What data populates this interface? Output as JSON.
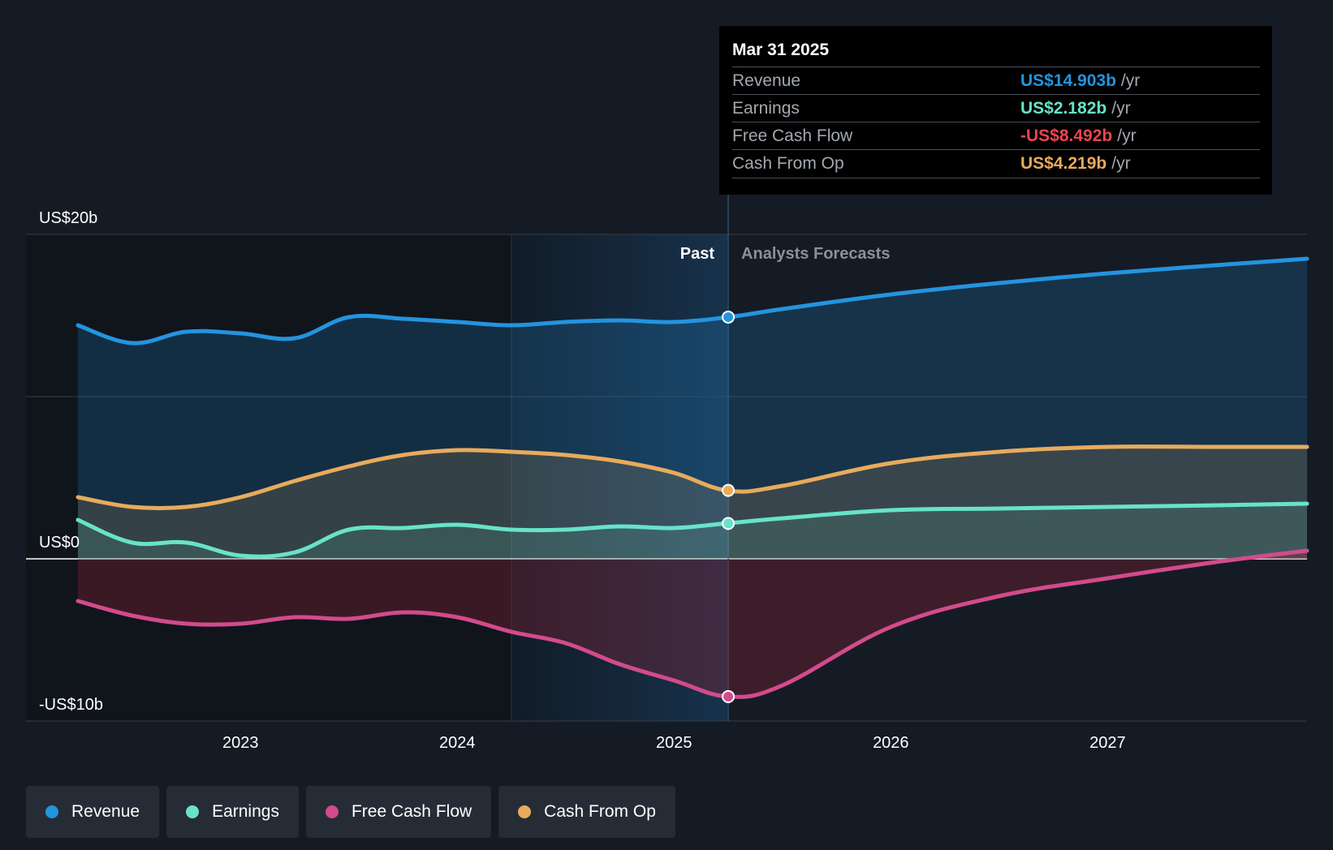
{
  "chart_data": {
    "type": "area",
    "x_domain": [
      2022.25,
      2027.92
    ],
    "y_domain": [
      -10,
      20
    ],
    "x_ticks": [
      {
        "value": 2023,
        "label": "2023"
      },
      {
        "value": 2024,
        "label": "2024"
      },
      {
        "value": 2025,
        "label": "2025"
      },
      {
        "value": 2026,
        "label": "2026"
      },
      {
        "value": 2027,
        "label": "2027"
      }
    ],
    "y_ticks": [
      {
        "value": 20,
        "label": "US$20b"
      },
      {
        "value": 0,
        "label": "US$0"
      },
      {
        "value": -10,
        "label": "-US$10b"
      }
    ],
    "gridlines": [
      20,
      10,
      0,
      -10
    ],
    "past_start": 2024.25,
    "divider": 2025.25,
    "past_label": "Past",
    "forecast_label": "Analysts Forecasts",
    "series": [
      {
        "name": "Revenue",
        "key": "revenue",
        "color": "#2394df",
        "points": [
          [
            2022.25,
            14.4
          ],
          [
            2022.5,
            13.3
          ],
          [
            2022.75,
            14.0
          ],
          [
            2023.0,
            13.9
          ],
          [
            2023.25,
            13.6
          ],
          [
            2023.5,
            14.9
          ],
          [
            2023.75,
            14.8
          ],
          [
            2024.0,
            14.6
          ],
          [
            2024.25,
            14.4
          ],
          [
            2024.5,
            14.6
          ],
          [
            2024.75,
            14.7
          ],
          [
            2025.0,
            14.6
          ],
          [
            2025.25,
            14.9
          ],
          [
            2025.5,
            15.4
          ],
          [
            2026.0,
            16.3
          ],
          [
            2026.5,
            17.0
          ],
          [
            2027.0,
            17.6
          ],
          [
            2027.5,
            18.1
          ],
          [
            2027.92,
            18.5
          ]
        ],
        "marker": 14.903
      },
      {
        "name": "Cash From Op",
        "key": "cfo",
        "color": "#e8ab5c",
        "points": [
          [
            2022.25,
            3.8
          ],
          [
            2022.5,
            3.2
          ],
          [
            2022.75,
            3.2
          ],
          [
            2023.0,
            3.8
          ],
          [
            2023.25,
            4.8
          ],
          [
            2023.5,
            5.7
          ],
          [
            2023.75,
            6.4
          ],
          [
            2024.0,
            6.7
          ],
          [
            2024.25,
            6.6
          ],
          [
            2024.5,
            6.4
          ],
          [
            2024.75,
            6.0
          ],
          [
            2025.0,
            5.3
          ],
          [
            2025.25,
            4.2
          ],
          [
            2025.5,
            4.5
          ],
          [
            2026.0,
            5.9
          ],
          [
            2026.5,
            6.6
          ],
          [
            2027.0,
            6.9
          ],
          [
            2027.5,
            6.9
          ],
          [
            2027.92,
            6.9
          ]
        ],
        "marker": 4.219
      },
      {
        "name": "Earnings",
        "key": "earnings",
        "color": "#67e3c9",
        "points": [
          [
            2022.25,
            2.4
          ],
          [
            2022.5,
            1.0
          ],
          [
            2022.75,
            1.0
          ],
          [
            2023.0,
            0.2
          ],
          [
            2023.25,
            0.4
          ],
          [
            2023.5,
            1.8
          ],
          [
            2023.75,
            1.9
          ],
          [
            2024.0,
            2.1
          ],
          [
            2024.25,
            1.8
          ],
          [
            2024.5,
            1.8
          ],
          [
            2024.75,
            2.0
          ],
          [
            2025.0,
            1.9
          ],
          [
            2025.25,
            2.2
          ],
          [
            2025.5,
            2.5
          ],
          [
            2026.0,
            3.0
          ],
          [
            2026.5,
            3.1
          ],
          [
            2027.0,
            3.2
          ],
          [
            2027.5,
            3.3
          ],
          [
            2027.92,
            3.4
          ]
        ],
        "marker": 2.182
      },
      {
        "name": "Free Cash Flow",
        "key": "fcf",
        "color": "#d24b8c",
        "points": [
          [
            2022.25,
            -2.6
          ],
          [
            2022.5,
            -3.5
          ],
          [
            2022.75,
            -4.0
          ],
          [
            2023.0,
            -4.0
          ],
          [
            2023.25,
            -3.6
          ],
          [
            2023.5,
            -3.7
          ],
          [
            2023.75,
            -3.3
          ],
          [
            2024.0,
            -3.6
          ],
          [
            2024.25,
            -4.5
          ],
          [
            2024.5,
            -5.2
          ],
          [
            2024.75,
            -6.5
          ],
          [
            2025.0,
            -7.5
          ],
          [
            2025.25,
            -8.49
          ],
          [
            2025.5,
            -7.8
          ],
          [
            2026.0,
            -4.2
          ],
          [
            2026.5,
            -2.3
          ],
          [
            2027.0,
            -1.2
          ],
          [
            2027.5,
            -0.2
          ],
          [
            2027.92,
            0.5
          ]
        ],
        "marker": -8.492
      }
    ]
  },
  "tooltip": {
    "date": "Mar 31 2025",
    "unit": "/yr",
    "rows": [
      {
        "label": "Revenue",
        "value": "US$14.903b",
        "color": "#2394df"
      },
      {
        "label": "Earnings",
        "value": "US$2.182b",
        "color": "#67e3c9"
      },
      {
        "label": "Free Cash Flow",
        "value": "-US$8.492b",
        "color": "#e8474f"
      },
      {
        "label": "Cash From Op",
        "value": "US$4.219b",
        "color": "#e8ab5c"
      }
    ]
  },
  "legend": [
    {
      "label": "Revenue",
      "color": "#2394df"
    },
    {
      "label": "Earnings",
      "color": "#67e3c9"
    },
    {
      "label": "Free Cash Flow",
      "color": "#d24b8c"
    },
    {
      "label": "Cash From Op",
      "color": "#e8ab5c"
    }
  ]
}
